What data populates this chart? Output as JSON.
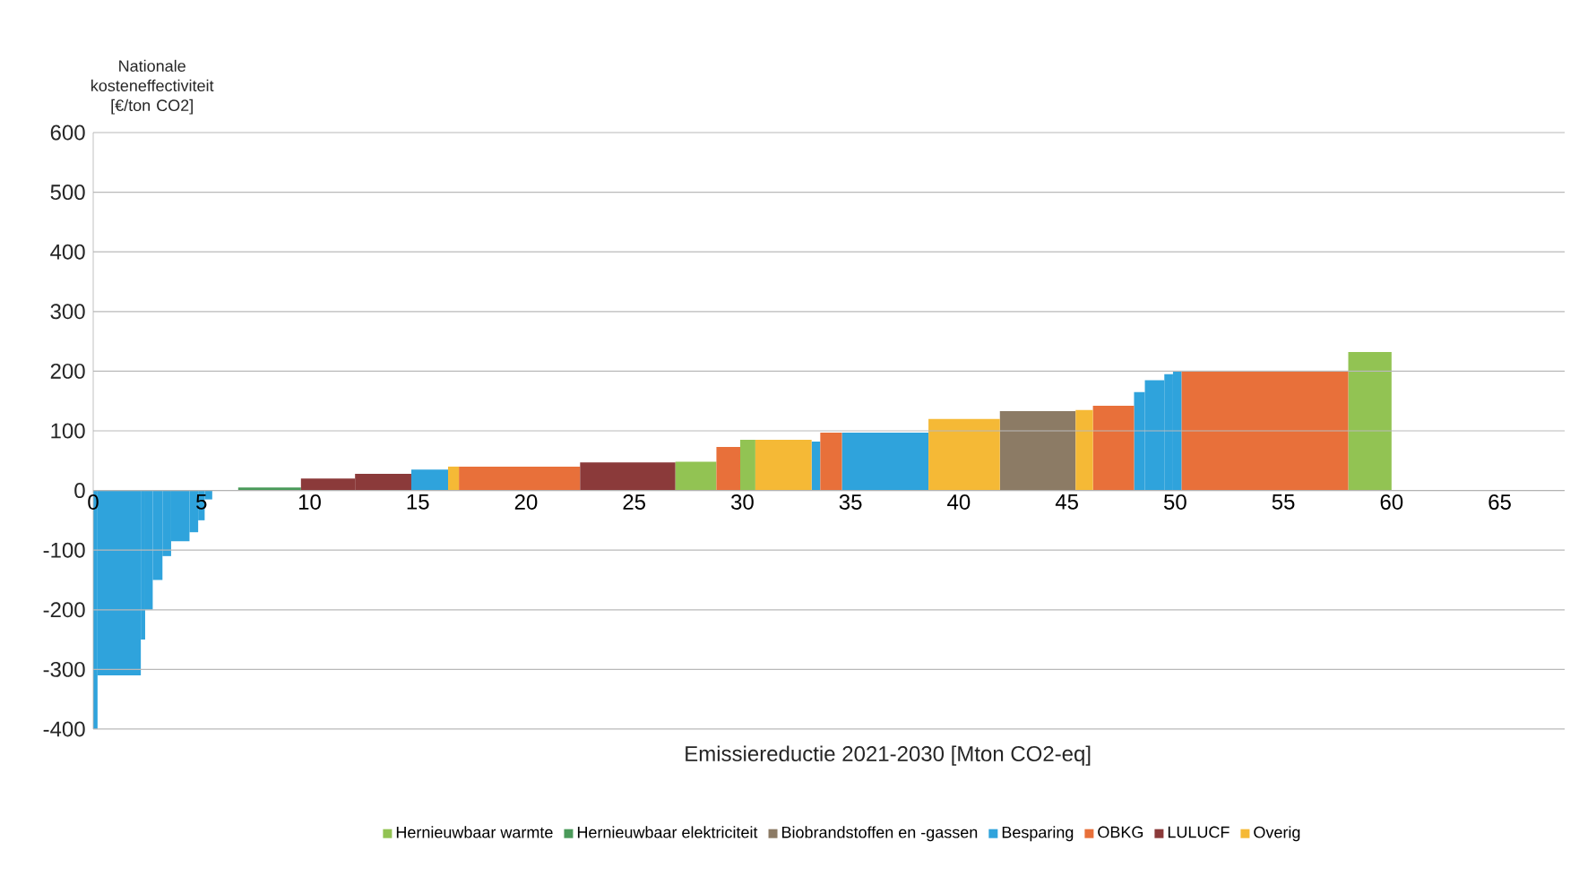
{
  "chart_data": {
    "type": "histogram",
    "ylabel": "Nationale kosteneffectiviteit [€/ton CO2]",
    "xlabel": "Emissiereductie 2021-2030 [Mton CO2-eq]",
    "bins": [
      0,
      0.2,
      2.2,
      2.4,
      2.75,
      3.2,
      3.6,
      4.45,
      4.85,
      5.15,
      5.5,
      6.7,
      9.6,
      12.1,
      14.7,
      16.4,
      16.9,
      22.5,
      26.9,
      28.8,
      29.9,
      30.6,
      33.2,
      33.6,
      34.6,
      38.6,
      41.9,
      45.4,
      46.2,
      48.1,
      48.6,
      49.5,
      49.9,
      50.3,
      58.0,
      60.0
    ],
    "series": [
      {
        "name": "Hernieuwbaar warmte",
        "color": "#92c353",
        "values": [
          null,
          null,
          null,
          null,
          null,
          null,
          null,
          null,
          null,
          null,
          null,
          null,
          null,
          null,
          null,
          null,
          null,
          null,
          48,
          null,
          85,
          null,
          null,
          null,
          null,
          null,
          null,
          null,
          null,
          null,
          null,
          null,
          null,
          null,
          232
        ]
      },
      {
        "name": "Hernieuwbaar elektriciteit",
        "color": "#4a9a5a",
        "values": [
          null,
          null,
          null,
          null,
          null,
          null,
          null,
          null,
          null,
          null,
          null,
          5,
          null,
          null,
          null,
          null,
          null,
          null,
          null,
          null,
          null,
          null,
          null,
          null,
          null,
          null,
          null,
          null,
          null,
          null,
          null,
          null,
          null,
          null,
          null
        ]
      },
      {
        "name": "Biobrandstoffen en -gassen",
        "color": "#8c7b65",
        "values": [
          null,
          null,
          null,
          null,
          null,
          null,
          null,
          null,
          null,
          null,
          null,
          null,
          null,
          null,
          null,
          null,
          null,
          null,
          null,
          null,
          null,
          null,
          null,
          null,
          null,
          null,
          133,
          null,
          null,
          null,
          null,
          null,
          null,
          null,
          null
        ]
      },
      {
        "name": "Besparing",
        "color": "#2fa3dc",
        "values": [
          -400,
          -310,
          -250,
          -200,
          -150,
          -110,
          -85,
          -70,
          -50,
          -15,
          null,
          null,
          null,
          null,
          35,
          null,
          null,
          null,
          null,
          null,
          null,
          null,
          82,
          null,
          97,
          null,
          null,
          null,
          null,
          165,
          185,
          195,
          200,
          null,
          null
        ]
      },
      {
        "name": "OBKG",
        "color": "#e8703a",
        "values": [
          null,
          null,
          null,
          null,
          null,
          null,
          null,
          null,
          null,
          null,
          null,
          null,
          null,
          null,
          null,
          null,
          40,
          null,
          null,
          73,
          null,
          null,
          null,
          97,
          null,
          null,
          null,
          null,
          142,
          null,
          null,
          null,
          null,
          200,
          null
        ]
      },
      {
        "name": "LULUCF",
        "color": "#8b3a3a",
        "values": [
          null,
          null,
          null,
          null,
          null,
          null,
          null,
          null,
          null,
          null,
          null,
          null,
          20,
          28,
          null,
          null,
          null,
          47,
          null,
          null,
          null,
          null,
          null,
          null,
          null,
          null,
          null,
          null,
          null,
          null,
          null,
          null,
          null,
          null,
          null
        ]
      },
      {
        "name": "Overig",
        "color": "#f5b936",
        "values": [
          null,
          null,
          null,
          null,
          null,
          null,
          null,
          null,
          null,
          null,
          null,
          null,
          null,
          null,
          null,
          40,
          null,
          null,
          null,
          null,
          null,
          85,
          null,
          null,
          null,
          120,
          null,
          135,
          null,
          null,
          null,
          null,
          null,
          null,
          null
        ]
      }
    ],
    "xlim": [
      0,
      68
    ],
    "ylim": [
      -400,
      600
    ],
    "xticks": [
      0,
      5,
      10,
      15,
      20,
      25,
      30,
      35,
      40,
      45,
      50,
      55,
      60,
      65
    ],
    "yticks": [
      -400,
      -300,
      -200,
      -100,
      0,
      100,
      200,
      300,
      400,
      500,
      600
    ],
    "grid": "y",
    "legend": "bottom"
  }
}
